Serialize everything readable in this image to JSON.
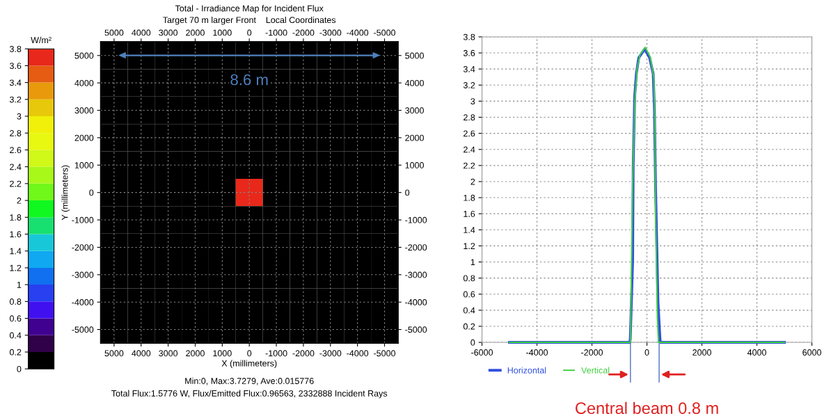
{
  "chart_data": [
    {
      "type": "heatmap",
      "title": "Total - Irradiance Map for Incident Flux",
      "subtitle": "Target 70 m larger Front    Local Coordinates",
      "xlabel": "X (millimeters)",
      "ylabel": "Y (millimeters)",
      "clabel": "W/m²",
      "annotations": [
        "8.6 m",
        "Min:0, Max:3.7279, Ave:0.015776",
        "Total Flux:1.5776 W, Flux/Emitted Flux:0.96563, 2332888 Incident Rays"
      ],
      "categories": [
        "5000",
        "4000",
        "3000",
        "2000",
        "1000",
        "0",
        "-1000",
        "-2000",
        "-3000",
        "-4000",
        "-5000"
      ],
      "y_categories": [
        "5000",
        "4000",
        "3000",
        "2000",
        "1000",
        "0",
        "-1000",
        "-2000",
        "-3000",
        "-4000",
        "-5000"
      ],
      "y2_categories": [
        "5000",
        "4000",
        "3000",
        "2000",
        "1000",
        "0",
        "-1000",
        "-2000",
        "-3000",
        "-4000",
        "-5000"
      ],
      "cells": [
        [
          0,
          0,
          0,
          0,
          0,
          0,
          0,
          0,
          0,
          0,
          0
        ],
        [
          0,
          0,
          0,
          0,
          0,
          0,
          0,
          0,
          0,
          0,
          0
        ],
        [
          0,
          0,
          0,
          0,
          0,
          0,
          0,
          0,
          0,
          0,
          0
        ],
        [
          0,
          0,
          0,
          0,
          0,
          0,
          0,
          0,
          0,
          0,
          0
        ],
        [
          0,
          0,
          0,
          0,
          0,
          0,
          0,
          0,
          0,
          0,
          0
        ],
        [
          0,
          0,
          0,
          0,
          0,
          3.7,
          0,
          0,
          0,
          0,
          0
        ],
        [
          0,
          0,
          0,
          0,
          0,
          0,
          0,
          0,
          0,
          0,
          0
        ],
        [
          0,
          0,
          0,
          0,
          0,
          0,
          0,
          0,
          0,
          0,
          0
        ],
        [
          0,
          0,
          0,
          0,
          0,
          0,
          0,
          0,
          0,
          0,
          0
        ],
        [
          0,
          0,
          0,
          0,
          0,
          0,
          0,
          0,
          0,
          0,
          0
        ],
        [
          0,
          0,
          0,
          0,
          0,
          0,
          0,
          0,
          0,
          0,
          0
        ]
      ],
      "colors": [
        "#000000",
        "#300048",
        "#400090",
        "#4010f0",
        "#2840f0",
        "#1070f0",
        "#10a8f0",
        "#18c8d8",
        "#18e070",
        "#10f820",
        "#70f81a",
        "#a8f81a",
        "#d0f818",
        "#e8f810",
        "#f0f00a",
        "#e8c80a",
        "#e89a0c",
        "#e65c12",
        "#e8281a"
      ],
      "clim": [
        0,
        3.8
      ],
      "cticks": [
        0,
        0.2,
        0.4,
        0.6,
        0.8,
        1,
        1.2,
        1.4,
        1.6,
        1.8,
        2,
        2.2,
        2.4,
        2.6,
        2.8,
        3,
        3.2,
        3.4,
        3.6,
        3.8
      ],
      "grid": true
    },
    {
      "type": "line",
      "xlim": [
        -6000,
        6000
      ],
      "xticks": [
        -6000,
        -4000,
        -2000,
        0,
        2000,
        4000,
        6000
      ],
      "ylim": [
        0,
        3.8
      ],
      "yticks": [
        0,
        0.2,
        0.4,
        0.6,
        0.8,
        1,
        1.2,
        1.4,
        1.6,
        1.8,
        2,
        2.2,
        2.4,
        2.6,
        2.8,
        3,
        3.2,
        3.4,
        3.6,
        3.8
      ],
      "grid": true,
      "legend": "bottom",
      "marker": "none",
      "line_style": "solid",
      "annotations": [
        "Central beam 0.8 m"
      ],
      "series": [
        {
          "name": "Horizontal",
          "color": "#3050e0",
          "x": [
            -5000,
            -620,
            -605,
            -518,
            -500,
            -447,
            -386,
            -298,
            -79,
            97,
            228,
            272,
            316,
            403,
            474,
            490,
            5000
          ],
          "values": [
            0,
            0,
            0.05,
            1.03,
            2.18,
            3.05,
            3.34,
            3.54,
            3.65,
            3.54,
            3.34,
            2.9,
            1.9,
            0.5,
            0.05,
            0,
            0
          ]
        },
        {
          "name": "Vertical",
          "color": "#40d040",
          "x": [
            -5000,
            -600,
            -560,
            -520,
            -440,
            -360,
            -250,
            -60,
            120,
            250,
            290,
            320,
            380,
            420,
            5000
          ],
          "values": [
            0,
            0,
            1.0,
            2.0,
            3.0,
            3.4,
            3.58,
            3.67,
            3.55,
            3.3,
            2.7,
            1.5,
            0.3,
            0,
            0
          ]
        }
      ]
    }
  ]
}
